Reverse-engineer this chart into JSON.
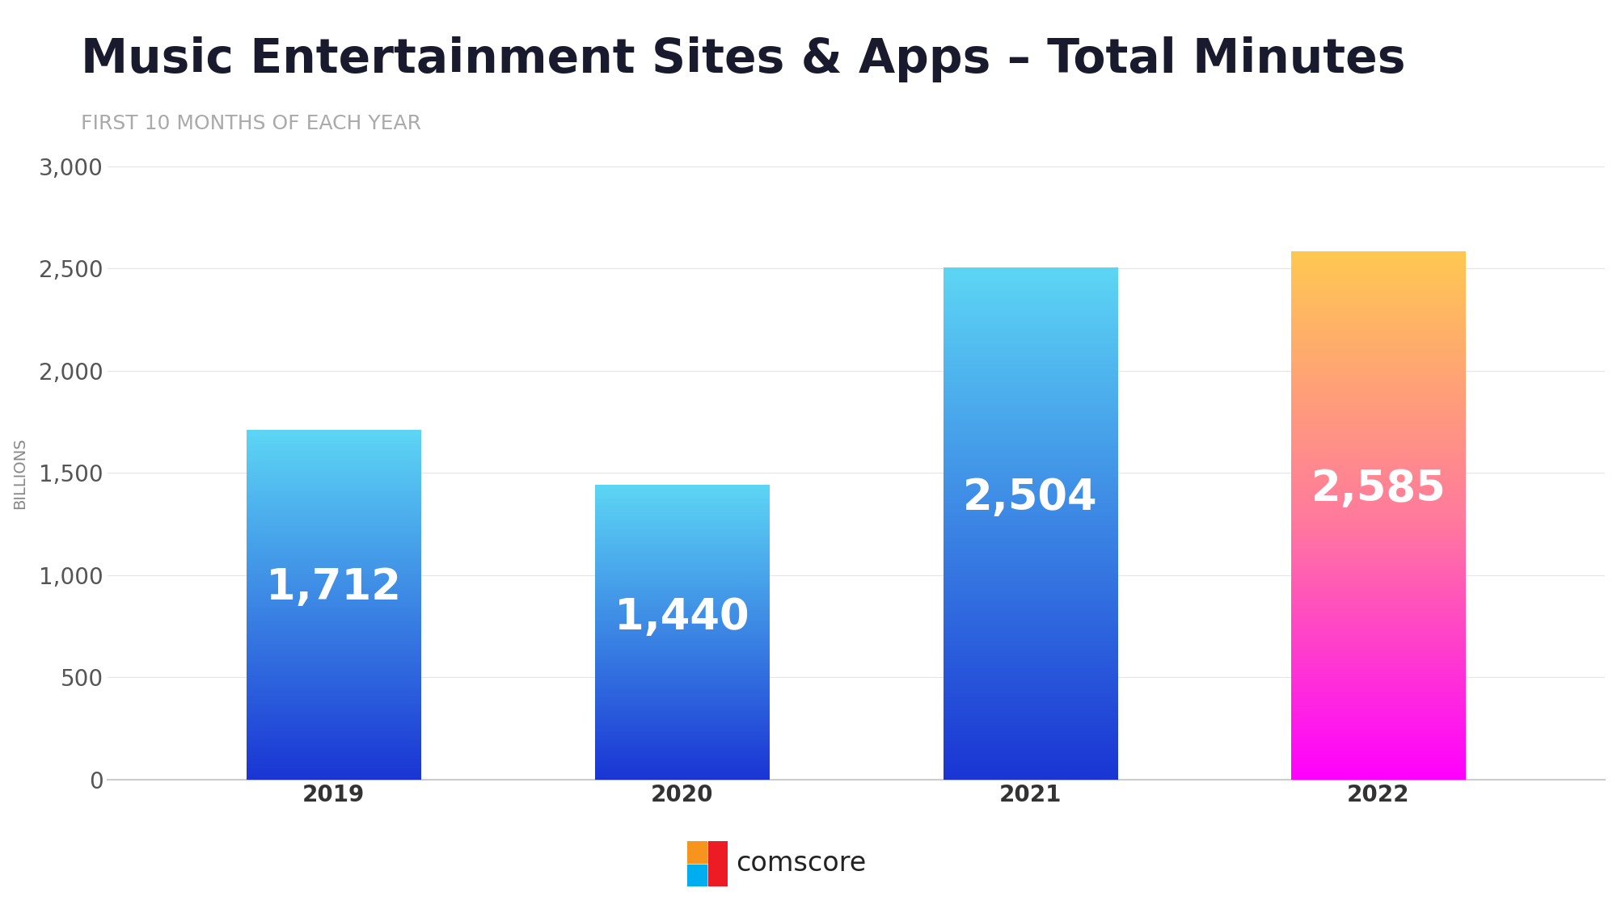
{
  "title": "Music Entertainment Sites & Apps – Total Minutes",
  "subtitle": "FIRST 10 MONTHS OF EACH YEAR",
  "categories": [
    "2019",
    "2020",
    "2021",
    "2022"
  ],
  "values": [
    1712,
    1440,
    2504,
    2585
  ],
  "labels": [
    "1,712",
    "1,440",
    "2,504",
    "2,585"
  ],
  "ylim": [
    0,
    3000
  ],
  "yticks": [
    0,
    500,
    1000,
    1500,
    2000,
    2500,
    3000
  ],
  "ylabel": "BILLIONS",
  "bar_width": 0.5,
  "title_color": "#1a1a2e",
  "subtitle_color": "#aaaaaa",
  "title_fontsize": 42,
  "subtitle_fontsize": 18,
  "label_fontsize": 38,
  "tick_fontsize": 20,
  "ylabel_fontsize": 14,
  "background_color": "#ffffff",
  "bar_gradients": [
    {
      "top": "#5dd6f5",
      "bottom": "#1a35d4"
    },
    {
      "top": "#5dd6f5",
      "bottom": "#1a35d4"
    },
    {
      "top": "#5dd6f5",
      "bottom": "#1a35d4"
    },
    {
      "top": "#ffc851",
      "mid": "#ff7b9c",
      "bottom": "#ff00ff"
    }
  ],
  "comscore_text": "comscore",
  "logo_colors": [
    "#f7941d",
    "#ed1c24",
    "#00aeef"
  ]
}
